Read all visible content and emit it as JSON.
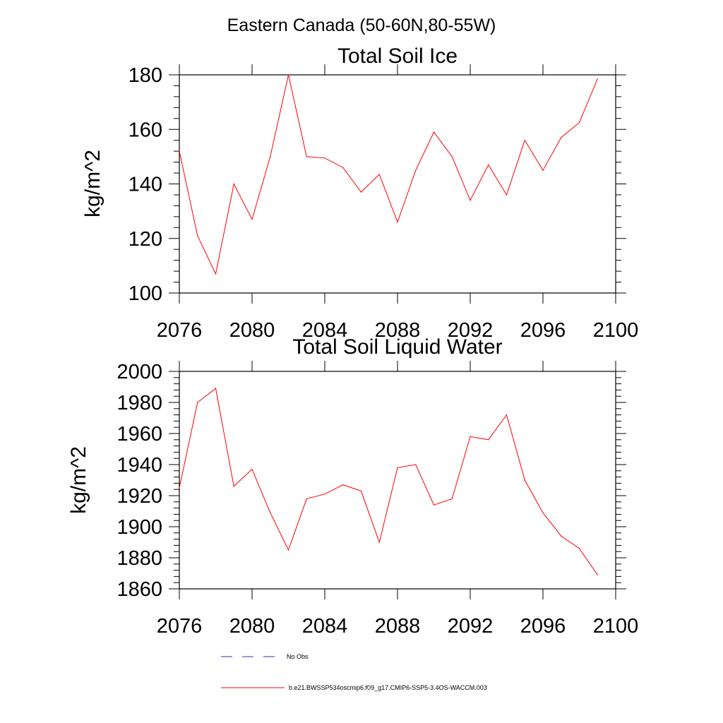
{
  "figure": {
    "title": "Eastern Canada (50-60N,80-55W)"
  },
  "chart_data": [
    {
      "type": "line",
      "title": "Total Soil Ice",
      "xlabel": "",
      "ylabel": "kg/m^2",
      "xlim": [
        2076,
        2100
      ],
      "ylim": [
        100,
        180
      ],
      "x_ticks": [
        2076,
        2080,
        2084,
        2088,
        2092,
        2096,
        2100
      ],
      "y_ticks": [
        100,
        120,
        140,
        160,
        180
      ],
      "grid": false,
      "x": [
        2076,
        2077,
        2078,
        2079,
        2080,
        2081,
        2082,
        2083,
        2084,
        2085,
        2086,
        2087,
        2088,
        2089,
        2090,
        2091,
        2092,
        2093,
        2094,
        2095,
        2096,
        2097,
        2098,
        2099
      ],
      "series": [
        {
          "name": "b.e21.BWSSP534oscmip6.f09_g17.CMIP6-SSP5-3.4OS-WACCM.003",
          "color": "#ff0000",
          "values": [
            152,
            121,
            107,
            140,
            127,
            150,
            180,
            150,
            149.5,
            146,
            137,
            143.5,
            126,
            145,
            159,
            150,
            134,
            147,
            136,
            156,
            145,
            157,
            162.5,
            178.5
          ]
        }
      ]
    },
    {
      "type": "line",
      "title": "Total Soil Liquid Water",
      "xlabel": "",
      "ylabel": "kg/m^2",
      "xlim": [
        2076,
        2100
      ],
      "ylim": [
        1860,
        2000
      ],
      "x_ticks": [
        2076,
        2080,
        2084,
        2088,
        2092,
        2096,
        2100
      ],
      "y_ticks": [
        1860,
        1880,
        1900,
        1920,
        1940,
        1960,
        1980,
        2000
      ],
      "grid": false,
      "x": [
        2076,
        2077,
        2078,
        2079,
        2080,
        2081,
        2082,
        2083,
        2084,
        2085,
        2086,
        2087,
        2088,
        2089,
        2090,
        2091,
        2092,
        2093,
        2094,
        2095,
        2096,
        2097,
        2098,
        2099
      ],
      "series": [
        {
          "name": "b.e21.BWSSP534oscmip6.f09_g17.CMIP6-SSP5-3.4OS-WACCM.003",
          "color": "#ff0000",
          "values": [
            1925,
            1980,
            1989,
            1926,
            1937,
            1909,
            1885,
            1918,
            1921,
            1927,
            1923,
            1890,
            1938,
            1940,
            1914,
            1918,
            1958,
            1956,
            1972,
            1930,
            1909,
            1894,
            1886,
            1869
          ]
        }
      ]
    }
  ],
  "legend": {
    "placement": "bottom",
    "entries": [
      {
        "label": "No Obs",
        "color": "#3333aa",
        "style": "dashed"
      },
      {
        "label": "b.e21.BWSSP534oscmip6.f09_g17.CMIP6-SSP5-3.4OS-WACCM.003",
        "color": "#ff0000",
        "style": "solid"
      }
    ]
  }
}
